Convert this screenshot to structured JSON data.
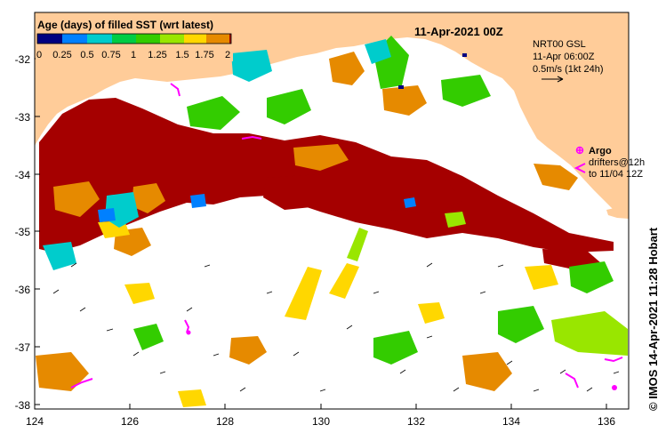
{
  "map": {
    "title": "11-Apr-2021 00Z",
    "legend": {
      "title": "Age (days) of filled SST (wrt latest)",
      "ticks": [
        "0",
        "0.25",
        "0.5",
        "0.75",
        "1",
        "1.25",
        "1.5",
        "1.75",
        "2"
      ]
    },
    "current_info": {
      "product": "NRT00 GSL",
      "time": "11-Apr 06:00Z",
      "scale": "0.5m/s (1kt 24h)"
    },
    "argo": {
      "label": "Argo",
      "drifters_line1": "drifters@12h",
      "drifters_line2": "to 11/04 12Z"
    },
    "credit": "© IMOS 14-Apr-2021 11:28 Hobart",
    "lat_labels": [
      "-32",
      "-33",
      "-34",
      "-35",
      "-36",
      "-37",
      "-38"
    ],
    "lon_labels": [
      "124",
      "126",
      "128",
      "130",
      "132",
      "134",
      "136"
    ],
    "colors": {
      "land": "#FFCC99",
      "ocean_nodata": "#FFFFFF",
      "age_0": "#000080",
      "age_0_25": "#0080FF",
      "age_0_5": "#00CCCC",
      "age_0_75": "#00CC44",
      "age_1": "#33CC00",
      "age_1_25": "#99E600",
      "age_1_5": "#FFD700",
      "age_1_75": "#E68A00",
      "age_2": "#A50000",
      "argo": "#FF00FF"
    }
  }
}
